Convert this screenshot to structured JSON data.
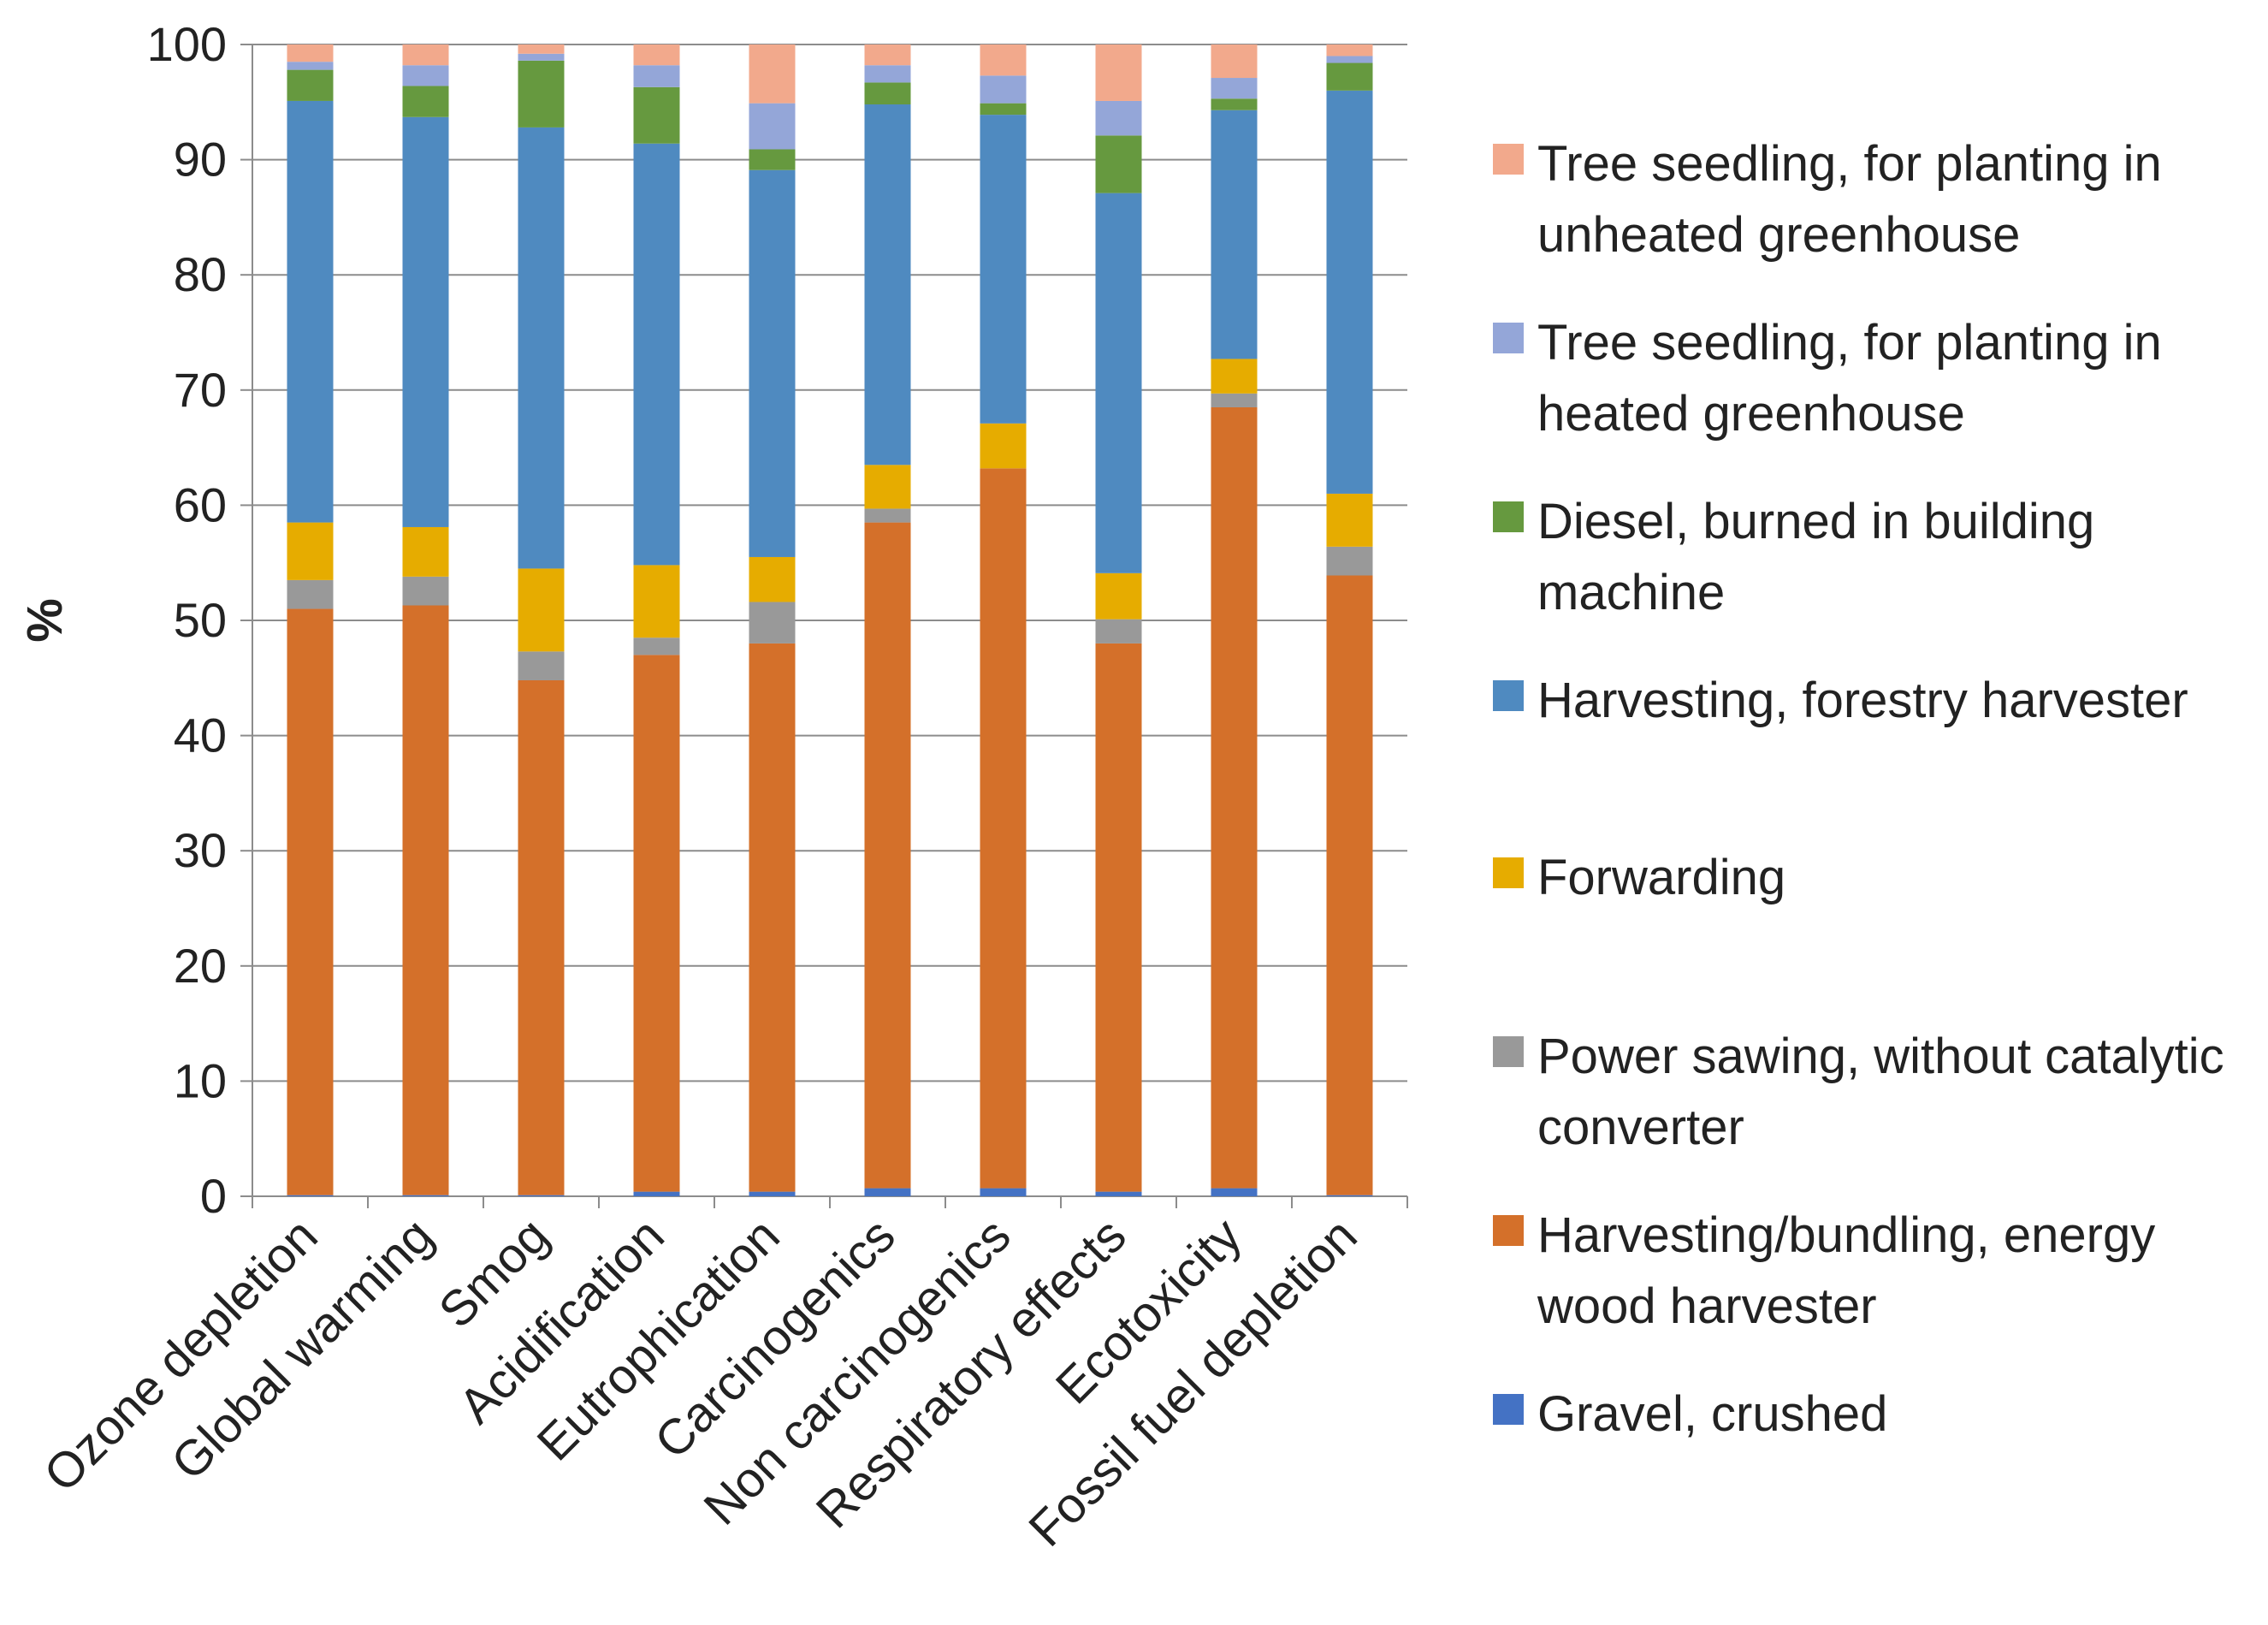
{
  "chart_data": {
    "type": "bar",
    "stacked": true,
    "title": "",
    "xlabel": "",
    "ylabel": "%",
    "ylim": [
      0,
      100
    ],
    "yticks": [
      0,
      10,
      20,
      30,
      40,
      50,
      60,
      70,
      80,
      90,
      100
    ],
    "grid": true,
    "legend_position": "right",
    "categories": [
      "Ozone depletion",
      "Global warming",
      "Smog",
      "Acidification",
      "Eutrophication",
      "Carcinogenics",
      "Non carcinogenics",
      "Respiratory effects",
      "Ecotoxicity",
      "Fossil fuel depletion"
    ],
    "series": [
      {
        "name": "Gravel, crushed",
        "color": "#4472c4",
        "values": [
          0.1,
          0.1,
          0.1,
          0.4,
          0.4,
          0.7,
          0.7,
          0.4,
          0.7,
          0.1
        ]
      },
      {
        "name": "Harvesting/bundling, energy wood harvester",
        "color": "#d4702a",
        "values": [
          50.9,
          51.2,
          44.7,
          46.6,
          47.6,
          57.8,
          62.5,
          47.6,
          67.8,
          53.8
        ]
      },
      {
        "name": "Power sawing, without catalytic converter",
        "color": "#999999",
        "values": [
          2.5,
          2.5,
          2.5,
          1.5,
          3.6,
          1.2,
          0,
          2.1,
          1.2,
          2.5
        ]
      },
      {
        "name": "Forwarding",
        "color": "#e6ac00",
        "values": [
          5.0,
          4.3,
          7.2,
          6.3,
          3.9,
          3.8,
          3.9,
          4.0,
          3.0,
          4.6
        ]
      },
      {
        "name": "Harvesting, forestry harvester",
        "color": "#4f8ac0",
        "values": [
          36.6,
          35.6,
          38.3,
          36.6,
          33.6,
          31.3,
          26.8,
          33.0,
          21.6,
          35.0
        ]
      },
      {
        "name": "Diesel, burned in building machine",
        "color": "#66993f",
        "values": [
          2.7,
          2.7,
          5.8,
          4.9,
          1.8,
          1.9,
          1.0,
          5.0,
          1.0,
          2.4
        ]
      },
      {
        "name": "Tree seedling, for planting in heated greenhouse",
        "color": "#94a6d8",
        "values": [
          0.7,
          1.8,
          0.6,
          1.9,
          4.0,
          1.5,
          2.4,
          3.0,
          1.8,
          0.6
        ]
      },
      {
        "name": "Tree seedling, for planting in unheated greenhouse",
        "color": "#f2a98c",
        "values": [
          1.5,
          1.8,
          0.8,
          1.8,
          5.1,
          1.8,
          2.7,
          4.9,
          2.9,
          1.0
        ]
      }
    ]
  },
  "legend": {
    "items": [
      {
        "label": "Tree seedling, for planting in unheated greenhouse",
        "color": "#f2a98c"
      },
      {
        "label": "Tree seedling, for planting in heated greenhouse",
        "color": "#94a6d8"
      },
      {
        "label": "Diesel, burned in building machine",
        "color": "#66993f"
      },
      {
        "label": "Harvesting, forestry harvester",
        "color": "#4f8ac0"
      },
      {
        "label": "Forwarding",
        "color": "#e6ac00"
      },
      {
        "label": "Power sawing, without catalytic converter",
        "color": "#999999"
      },
      {
        "label": "Harvesting/bundling, energy wood harvester",
        "color": "#d4702a"
      },
      {
        "label": "Gravel, crushed",
        "color": "#4472c4"
      }
    ]
  }
}
